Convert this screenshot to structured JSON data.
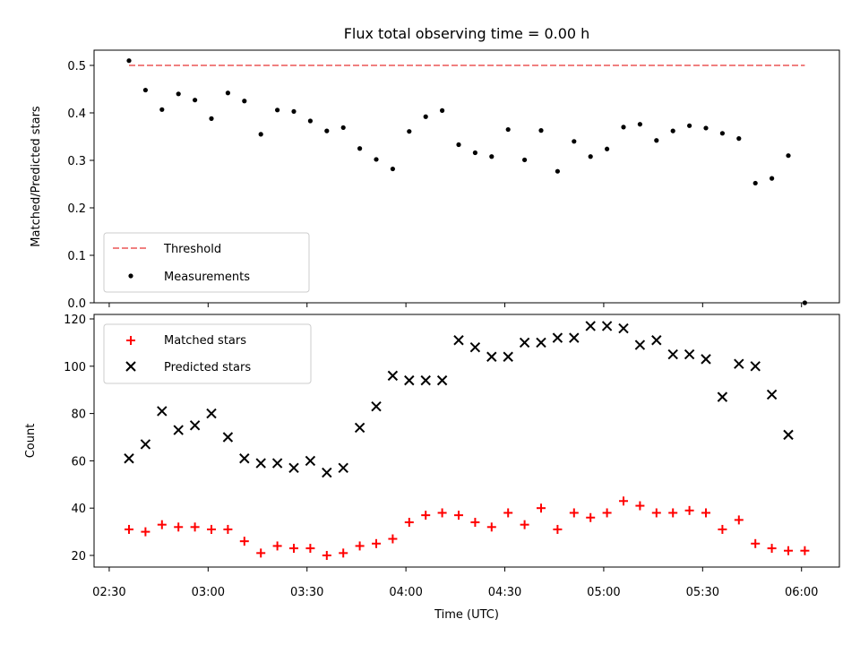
{
  "chart_data": [
    {
      "type": "scatter",
      "title": "Flux total observing time = 0.00 h",
      "ylabel": "Matched/Predicted stars",
      "ylim": [
        0,
        0.52
      ],
      "yticks": [
        "0.0",
        "0.1",
        "0.2",
        "0.3",
        "0.4",
        "0.5"
      ],
      "legend_position": "lower-left",
      "legend": [
        "Threshold",
        "Measurements"
      ],
      "threshold": {
        "name": "Threshold",
        "value": 0.5,
        "color": "#f08080",
        "style": "dashed",
        "x_start": 0,
        "x_end": 205
      },
      "series": [
        {
          "name": "Measurements",
          "marker": "dot",
          "color": "#000000",
          "x": [
            0,
            5,
            10,
            15,
            20,
            25,
            30,
            35,
            40,
            45,
            50,
            55,
            60,
            65,
            70,
            75,
            80,
            85,
            90,
            95,
            100,
            105,
            110,
            115,
            120,
            125,
            130,
            135,
            140,
            145,
            150,
            155,
            160,
            165,
            170,
            175,
            180,
            185,
            190,
            195,
            200,
            205
          ],
          "y": [
            0.51,
            0.448,
            0.407,
            0.44,
            0.427,
            0.388,
            0.442,
            0.425,
            0.355,
            0.406,
            0.403,
            0.383,
            0.362,
            0.369,
            0.325,
            0.302,
            0.282,
            0.361,
            0.392,
            0.405,
            0.333,
            0.316,
            0.308,
            0.365,
            0.301,
            0.363,
            0.277,
            0.34,
            0.308,
            0.324,
            0.37,
            0.376,
            0.342,
            0.362,
            0.373,
            0.368,
            0.357,
            0.346,
            0.252,
            0.262,
            0.31,
            0.0
          ]
        }
      ]
    },
    {
      "type": "scatter",
      "xlabel": "Time (UTC)",
      "ylabel": "Count",
      "ylim": [
        15,
        122
      ],
      "yticks": [
        "20",
        "40",
        "60",
        "80",
        "100",
        "120"
      ],
      "xticks": [
        "02:30",
        "03:00",
        "03:30",
        "04:00",
        "04:30",
        "05:00",
        "05:30",
        "06:00"
      ],
      "legend_position": "upper-left",
      "legend": [
        "Matched stars",
        "Predicted stars"
      ],
      "series": [
        {
          "name": "Matched stars",
          "marker": "plus",
          "color": "#ff0000",
          "x": [
            0,
            5,
            10,
            15,
            20,
            25,
            30,
            35,
            40,
            45,
            50,
            55,
            60,
            65,
            70,
            75,
            80,
            85,
            90,
            95,
            100,
            105,
            110,
            115,
            120,
            125,
            130,
            135,
            140,
            145,
            150,
            155,
            160,
            165,
            170,
            175,
            180,
            185,
            190,
            195,
            200,
            205
          ],
          "y": [
            31,
            30,
            33,
            32,
            32,
            31,
            31,
            26,
            21,
            24,
            23,
            23,
            20,
            21,
            24,
            25,
            27,
            34,
            37,
            38,
            37,
            34,
            32,
            38,
            33,
            40,
            31,
            38,
            36,
            38,
            43,
            41,
            38,
            38,
            39,
            38,
            31,
            35,
            25,
            23,
            22,
            22
          ]
        },
        {
          "name": "Predicted stars",
          "marker": "x",
          "color": "#000000",
          "x": [
            0,
            5,
            10,
            15,
            20,
            25,
            30,
            35,
            40,
            45,
            50,
            55,
            60,
            65,
            70,
            75,
            80,
            85,
            90,
            95,
            100,
            105,
            110,
            115,
            120,
            125,
            130,
            135,
            140,
            145,
            150,
            155,
            160,
            165,
            170,
            175,
            180,
            185,
            190,
            195,
            200
          ],
          "y": [
            61,
            67,
            81,
            73,
            75,
            80,
            70,
            61,
            59,
            59,
            57,
            60,
            55,
            57,
            74,
            83,
            96,
            94,
            94,
            94,
            111,
            108,
            104,
            104,
            110,
            110,
            112,
            112,
            117,
            117,
            116,
            109,
            111,
            105,
            105,
            103,
            87,
            101,
            100,
            88,
            71
          ]
        }
      ]
    }
  ]
}
